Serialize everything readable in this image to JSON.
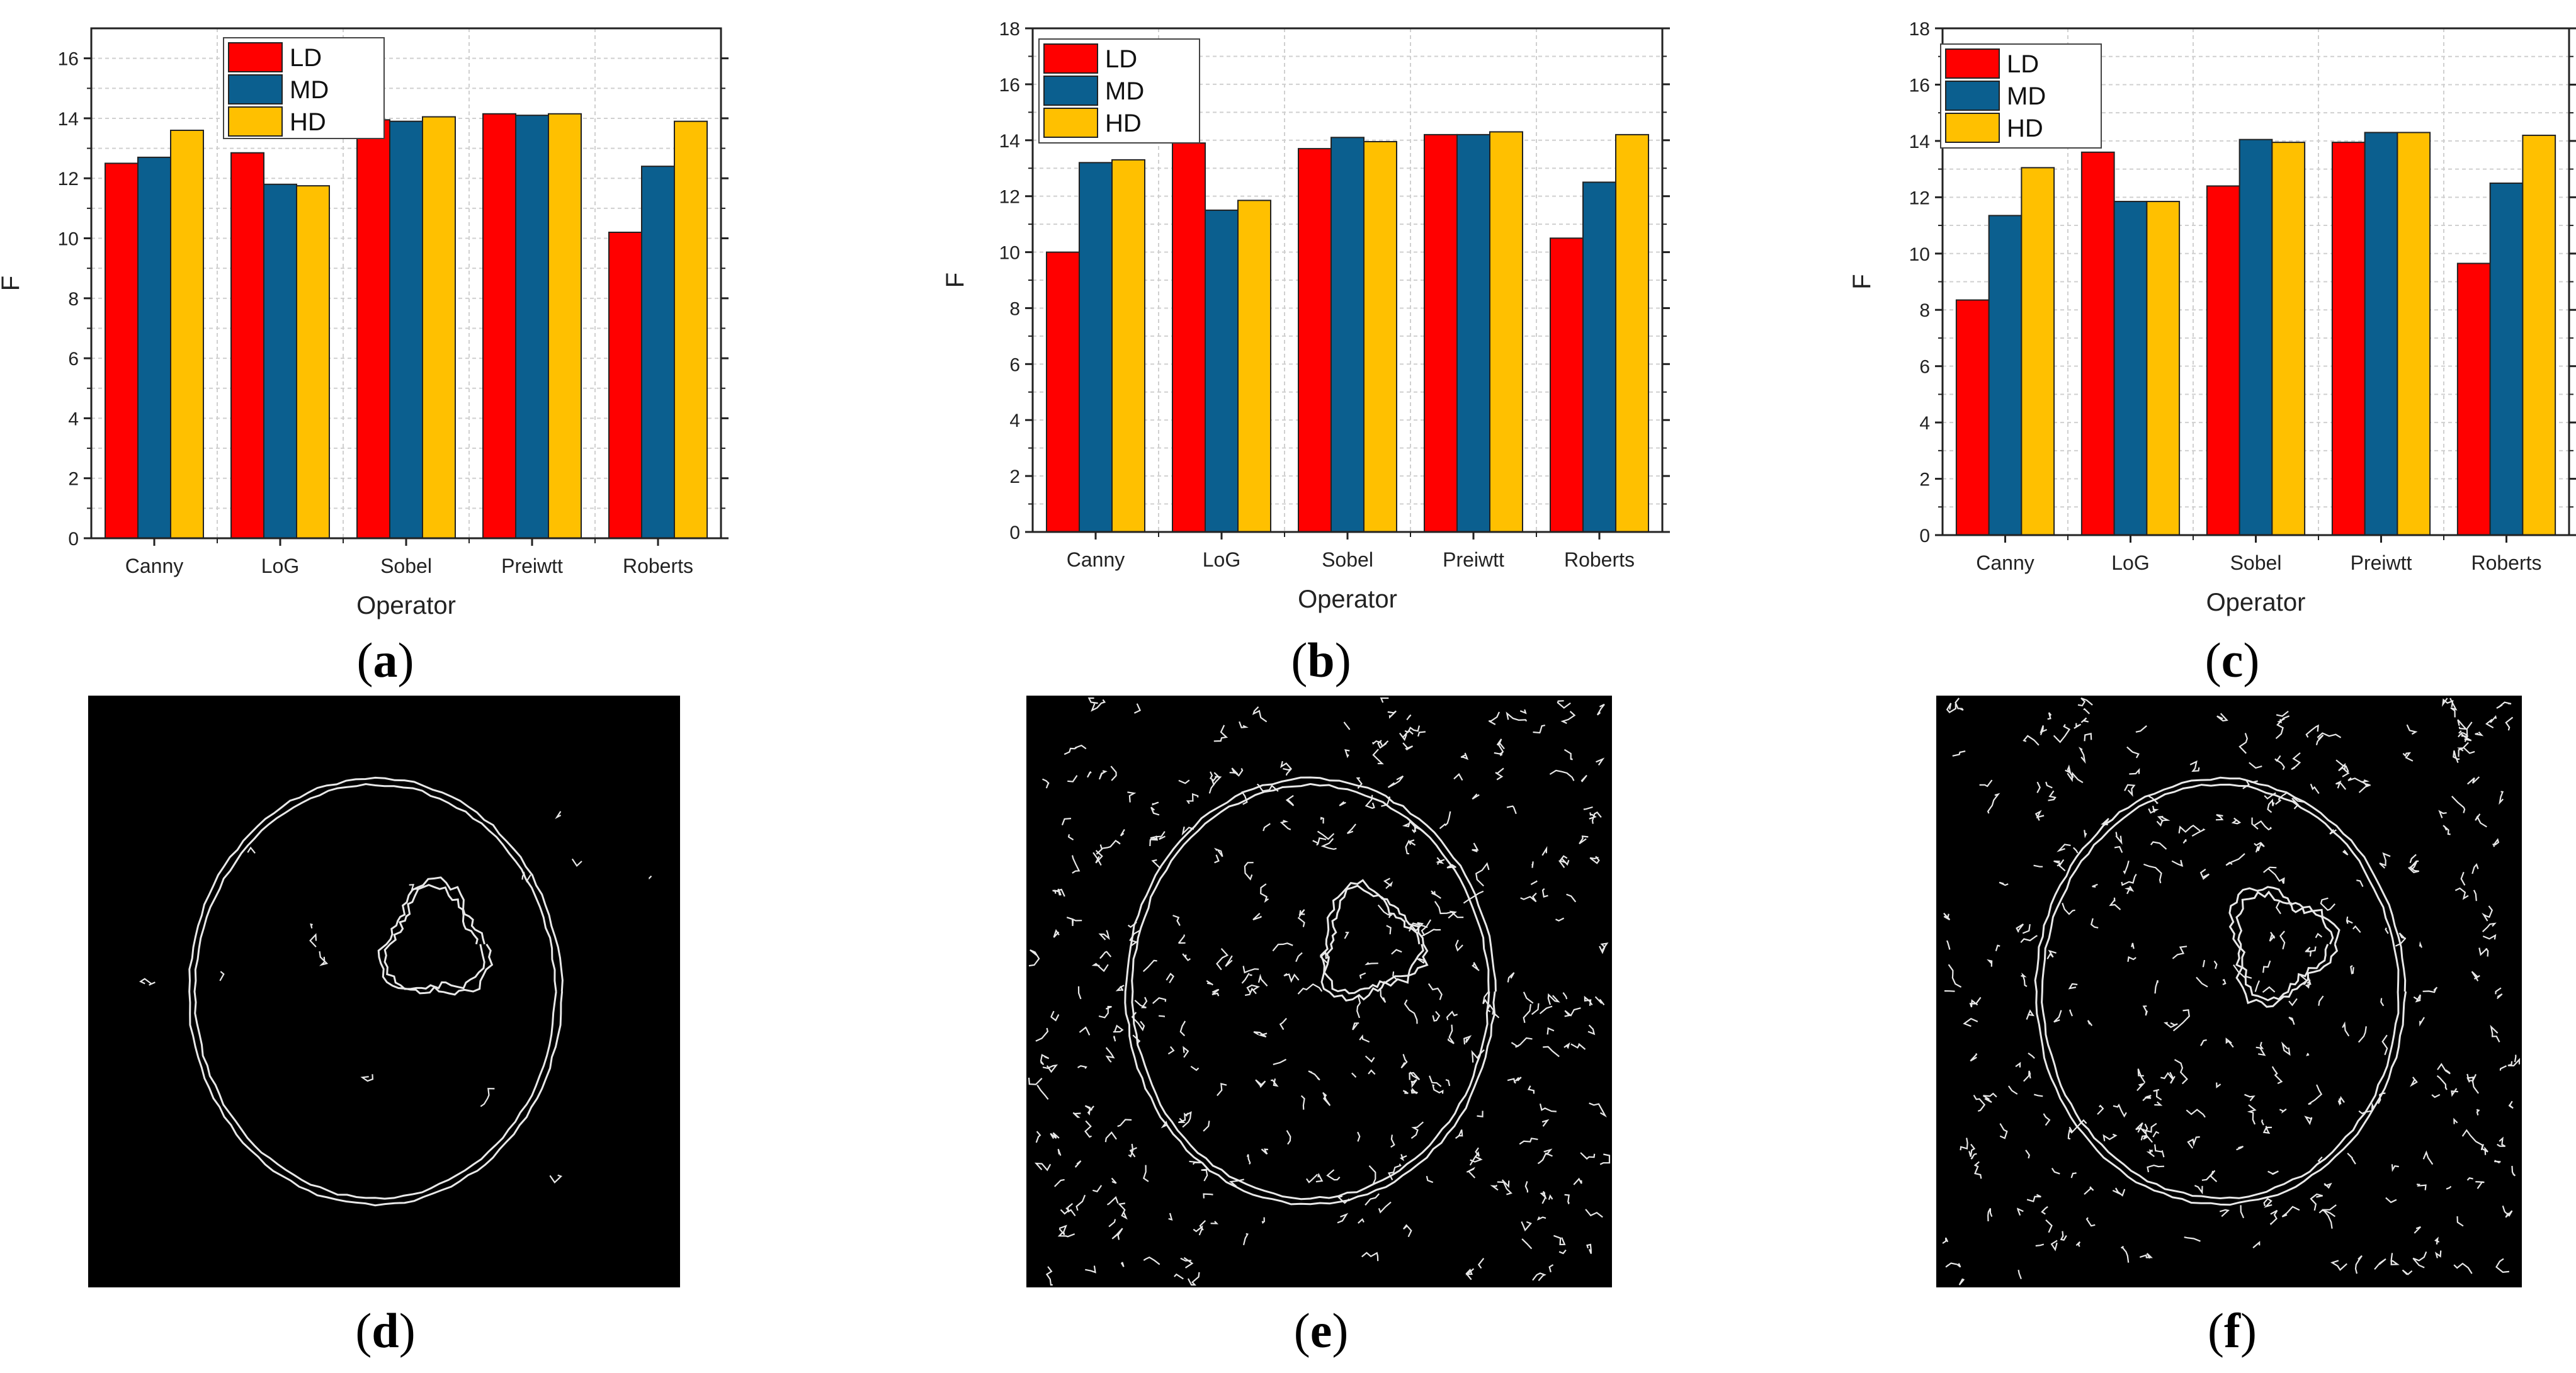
{
  "colors": {
    "LD": "#ff0000",
    "MD": "#0b5f8f",
    "HD": "#ffc000",
    "grid": "#d0d0d0",
    "edge_bg": "#000000",
    "edge_line": "#e8e8e8"
  },
  "panel_labels": [
    "a",
    "b",
    "c",
    "d",
    "e",
    "f"
  ],
  "chart_data": [
    {
      "type": "bar",
      "panel": "a",
      "categories": [
        "Canny",
        "LoG",
        "Sobel",
        "Preiwtt",
        "Roberts"
      ],
      "series": [
        {
          "name": "LD",
          "values": [
            12.5,
            12.85,
            13.95,
            14.15,
            10.2
          ]
        },
        {
          "name": "MD",
          "values": [
            12.7,
            11.8,
            13.9,
            14.1,
            12.4
          ]
        },
        {
          "name": "HD",
          "values": [
            13.6,
            11.75,
            14.05,
            14.15,
            13.9
          ]
        }
      ],
      "xlabel": "Operator",
      "ylabel": "F",
      "ylim": [
        0,
        17
      ],
      "yticks": [
        0,
        2,
        4,
        6,
        8,
        10,
        12,
        14,
        16
      ],
      "grid": true,
      "legend": "top-left"
    },
    {
      "type": "bar",
      "panel": "b",
      "categories": [
        "Canny",
        "LoG",
        "Sobel",
        "Preiwtt",
        "Roberts"
      ],
      "series": [
        {
          "name": "LD",
          "values": [
            10.0,
            13.9,
            13.7,
            14.2,
            10.5
          ]
        },
        {
          "name": "MD",
          "values": [
            13.2,
            11.5,
            14.1,
            14.2,
            12.5
          ]
        },
        {
          "name": "HD",
          "values": [
            13.3,
            11.85,
            13.95,
            14.3,
            14.2
          ]
        }
      ],
      "xlabel": "Operator",
      "ylabel": "F",
      "ylim": [
        0,
        18
      ],
      "yticks": [
        0,
        2,
        4,
        6,
        8,
        10,
        12,
        14,
        16,
        18
      ],
      "grid": true,
      "legend": "top-left"
    },
    {
      "type": "bar",
      "panel": "c",
      "categories": [
        "Canny",
        "LoG",
        "Sobel",
        "Preiwtt",
        "Roberts"
      ],
      "series": [
        {
          "name": "LD",
          "values": [
            8.35,
            13.6,
            12.4,
            13.95,
            9.65
          ]
        },
        {
          "name": "MD",
          "values": [
            11.35,
            11.85,
            14.05,
            14.3,
            12.5
          ]
        },
        {
          "name": "HD",
          "values": [
            13.05,
            11.85,
            13.95,
            14.3,
            14.2
          ]
        }
      ],
      "xlabel": "Operator",
      "ylabel": "F",
      "ylim": [
        0,
        18
      ],
      "yticks": [
        0,
        2,
        4,
        6,
        8,
        10,
        12,
        14,
        16,
        18
      ],
      "grid": true,
      "legend": "top-left"
    }
  ]
}
